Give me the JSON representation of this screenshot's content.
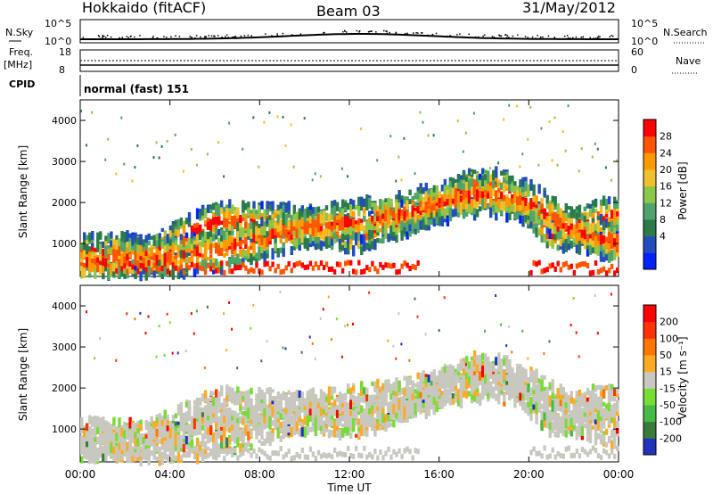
{
  "header": {
    "station": "Hokkaido (fitACF)",
    "beam": "Beam 03",
    "date": "31/May/2012"
  },
  "strips": {
    "nsky_label": "N.Sky",
    "nsky_ticks": [
      "10^5",
      "10^0"
    ],
    "nsearch_label": "N.Search",
    "freq_label_1": "Freq.",
    "freq_label_2": "[MHz]",
    "freq_ticks": [
      "18",
      "8"
    ],
    "nave_label": "Nave",
    "nave_ticks": [
      "60",
      "0"
    ],
    "cpid_label": "CPID",
    "cpid_value": "normal (fast) 151"
  },
  "chart_data": [
    {
      "type": "heatmap",
      "name": "power",
      "ylabel": "Slant Range [km]",
      "xlabel": "",
      "y_ticks": [
        1000,
        2000,
        3000,
        4000
      ],
      "ylim": [
        200,
        4500
      ],
      "x_ticks": [
        "00:00",
        "04:00",
        "08:00",
        "12:00",
        "16:00",
        "20:00",
        "00:00"
      ],
      "xlim_hours": [
        0,
        24
      ],
      "colorbar": {
        "label": "Power [dB]",
        "ticks": [
          "28",
          "24",
          "20",
          "16",
          "12",
          "8",
          "4"
        ],
        "colors": [
          "#0022ff",
          "#234dbf",
          "#2a7a4a",
          "#4fa36b",
          "#8cc74a",
          "#f0c02c",
          "#ff9900",
          "#ff5500",
          "#ff0000"
        ]
      },
      "echo_bands_km_vs_hour": [
        {
          "t": [
            0,
            3,
            6,
            9,
            12,
            15,
            17.5,
            19,
            21,
            23,
            24
          ],
          "r": [
            800,
            750,
            1550,
            1500,
            1200,
            1700,
            2400,
            2300,
            1200,
            1600,
            1700
          ]
        },
        {
          "t": [
            0,
            6,
            10,
            14,
            16,
            18,
            20,
            22,
            24
          ],
          "r": [
            500,
            800,
            1400,
            1700,
            2000,
            2200,
            2000,
            1300,
            1000
          ]
        }
      ]
    },
    {
      "type": "heatmap",
      "name": "velocity",
      "ylabel": "Slant Range [km]",
      "xlabel": "Time UT",
      "y_ticks": [
        1000,
        2000,
        3000,
        4000
      ],
      "ylim": [
        200,
        4500
      ],
      "x_ticks": [
        "00:00",
        "04:00",
        "08:00",
        "12:00",
        "16:00",
        "20:00",
        "00:00"
      ],
      "xlim_hours": [
        0,
        24
      ],
      "colorbar": {
        "label": "Velocity [m s⁻¹]",
        "ticks": [
          "200",
          "100",
          "50",
          "15",
          "-15",
          "-50",
          "-100",
          "-200"
        ],
        "colors": [
          "#2233bb",
          "#3a7a3a",
          "#44bb44",
          "#77dd33",
          "#c8c8c0",
          "#ffaa22",
          "#ff7700",
          "#ff3300",
          "#ff0000"
        ]
      }
    }
  ]
}
